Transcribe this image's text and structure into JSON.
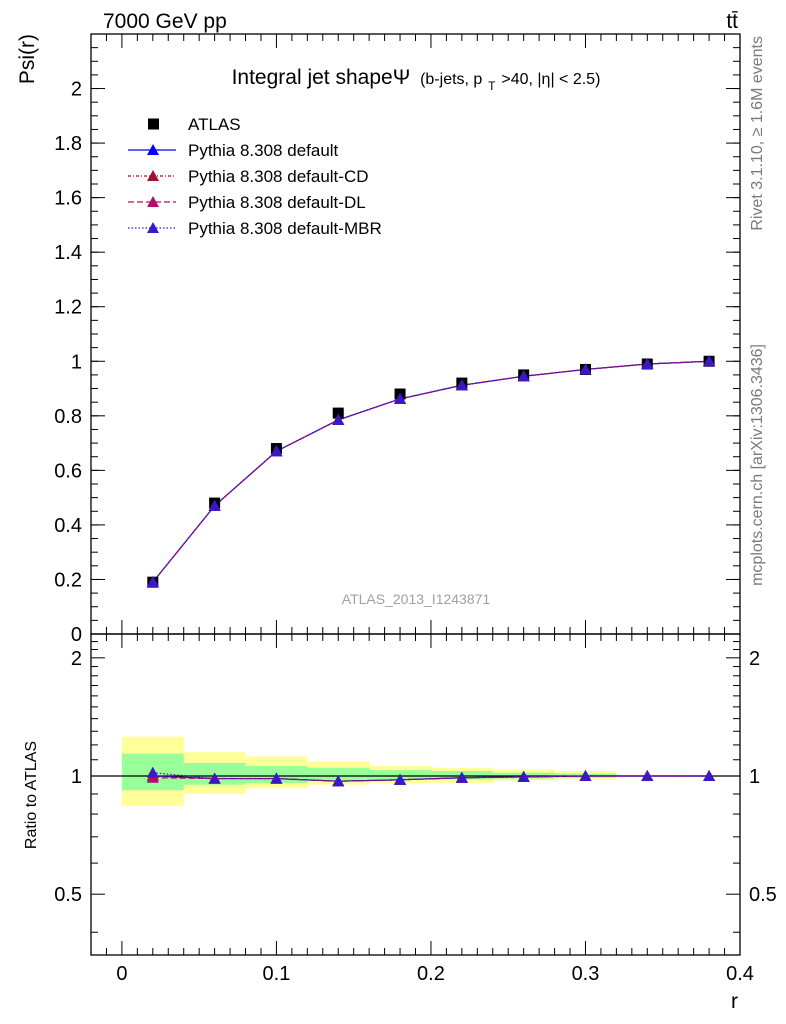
{
  "header": {
    "energy_label": "7000 GeV pp",
    "process_label": "tt̄"
  },
  "side_labels": {
    "rivet": "Rivet 3.1.10, ≥ 1.6M events",
    "mcplots": "mcplots.cern.ch [arXiv:1306.3436]"
  },
  "chart_data": [
    {
      "type": "line",
      "title_main": "Integral jet shapeΨ",
      "title_sub_pre": "(b-jets, p",
      "title_sub_T": "T",
      "title_sub_post": ">40, |η| < 2.5)",
      "ylabel": "Psi(r)",
      "xlim": [
        -0.02,
        0.4
      ],
      "ylim": [
        0,
        2.2
      ],
      "y_ticks": [
        "0",
        "0.2",
        "0.4",
        "0.6",
        "0.8",
        "1",
        "1.2",
        "1.4",
        "1.6",
        "1.8",
        "2"
      ],
      "watermark": "ATLAS_2013_I1243871",
      "x": [
        0.02,
        0.06,
        0.1,
        0.14,
        0.18,
        0.22,
        0.26,
        0.3,
        0.34,
        0.38
      ],
      "series": [
        {
          "name": "ATLAS",
          "color": "#000000",
          "marker": "square",
          "values": [
            0.19,
            0.48,
            0.68,
            0.81,
            0.88,
            0.92,
            0.95,
            0.97,
            0.99,
            1.0
          ]
        },
        {
          "name": "Pythia 8.308 default",
          "color": "#0000ff",
          "marker": "triangle",
          "dash": "",
          "values": [
            0.19,
            0.47,
            0.67,
            0.785,
            0.862,
            0.912,
            0.945,
            0.97,
            0.99,
            1.0
          ]
        },
        {
          "name": "Pythia 8.308 default-CD",
          "color": "#a01030",
          "marker": "triangle",
          "dash": "3,2,1,2",
          "values": [
            0.19,
            0.47,
            0.67,
            0.785,
            0.862,
            0.912,
            0.945,
            0.97,
            0.99,
            1.0
          ]
        },
        {
          "name": "Pythia 8.308 default-DL",
          "color": "#b0106a",
          "marker": "triangle",
          "dash": "6,3",
          "values": [
            0.19,
            0.47,
            0.67,
            0.785,
            0.862,
            0.912,
            0.945,
            0.97,
            0.99,
            1.0
          ]
        },
        {
          "name": "Pythia 8.308 default-MBR",
          "color": "#3818c8",
          "marker": "triangle",
          "dash": "1.5,2",
          "values": [
            0.19,
            0.47,
            0.67,
            0.785,
            0.862,
            0.912,
            0.945,
            0.97,
            0.99,
            1.0
          ]
        }
      ]
    },
    {
      "type": "line",
      "ylabel": "Ratio to ATLAS",
      "xlabel": "r",
      "xlim": [
        -0.02,
        0.4
      ],
      "ylim": [
        0.35,
        2.3
      ],
      "y_ticks": [
        "0.5",
        "1",
        "2"
      ],
      "x_ticks": [
        "0",
        "0.1",
        "0.2",
        "0.3",
        "0.4"
      ],
      "bands": [
        {
          "x": [
            0.0,
            0.04
          ],
          "yellow": [
            0.84,
            1.26
          ],
          "green": [
            0.92,
            1.14
          ]
        },
        {
          "x": [
            0.04,
            0.08
          ],
          "yellow": [
            0.9,
            1.15
          ],
          "green": [
            0.95,
            1.08
          ]
        },
        {
          "x": [
            0.08,
            0.12
          ],
          "yellow": [
            0.93,
            1.12
          ],
          "green": [
            0.96,
            1.06
          ]
        },
        {
          "x": [
            0.12,
            0.16
          ],
          "yellow": [
            0.95,
            1.09
          ],
          "green": [
            0.97,
            1.05
          ]
        },
        {
          "x": [
            0.16,
            0.2
          ],
          "yellow": [
            0.96,
            1.06
          ],
          "green": [
            0.98,
            1.035
          ]
        },
        {
          "x": [
            0.2,
            0.24
          ],
          "yellow": [
            0.96,
            1.05
          ],
          "green": [
            0.98,
            1.03
          ]
        },
        {
          "x": [
            0.24,
            0.28
          ],
          "yellow": [
            0.975,
            1.04
          ],
          "green": [
            0.985,
            1.02
          ]
        },
        {
          "x": [
            0.28,
            0.32
          ],
          "yellow": [
            0.98,
            1.03
          ],
          "green": [
            0.99,
            1.015
          ]
        }
      ],
      "x": [
        0.02,
        0.06,
        0.1,
        0.14,
        0.18,
        0.22,
        0.26,
        0.3,
        0.34,
        0.38
      ],
      "series": [
        {
          "name": "Pythia 8.308 default",
          "color": "#0000ff",
          "dash": "",
          "values": [
            1.0,
            0.985,
            0.985,
            0.97,
            0.978,
            0.99,
            0.995,
            1.0,
            1.0,
            1.0
          ]
        },
        {
          "name": "Pythia 8.308 default-CD",
          "color": "#a01030",
          "dash": "3,2,1,2",
          "values": [
            1.0,
            0.985,
            0.985,
            0.97,
            0.978,
            0.99,
            0.995,
            1.0,
            1.0,
            1.0
          ]
        },
        {
          "name": "Pythia 8.308 default-DL",
          "color": "#b0106a",
          "dash": "6,3",
          "values": [
            0.99,
            0.985,
            0.985,
            0.97,
            0.978,
            0.99,
            0.995,
            1.0,
            1.0,
            1.0
          ]
        },
        {
          "name": "Pythia 8.308 default-MBR",
          "color": "#3818c8",
          "dash": "1.5,2",
          "values": [
            1.02,
            0.985,
            0.985,
            0.97,
            0.978,
            0.99,
            0.995,
            1.0,
            1.0,
            1.0
          ]
        }
      ]
    }
  ]
}
